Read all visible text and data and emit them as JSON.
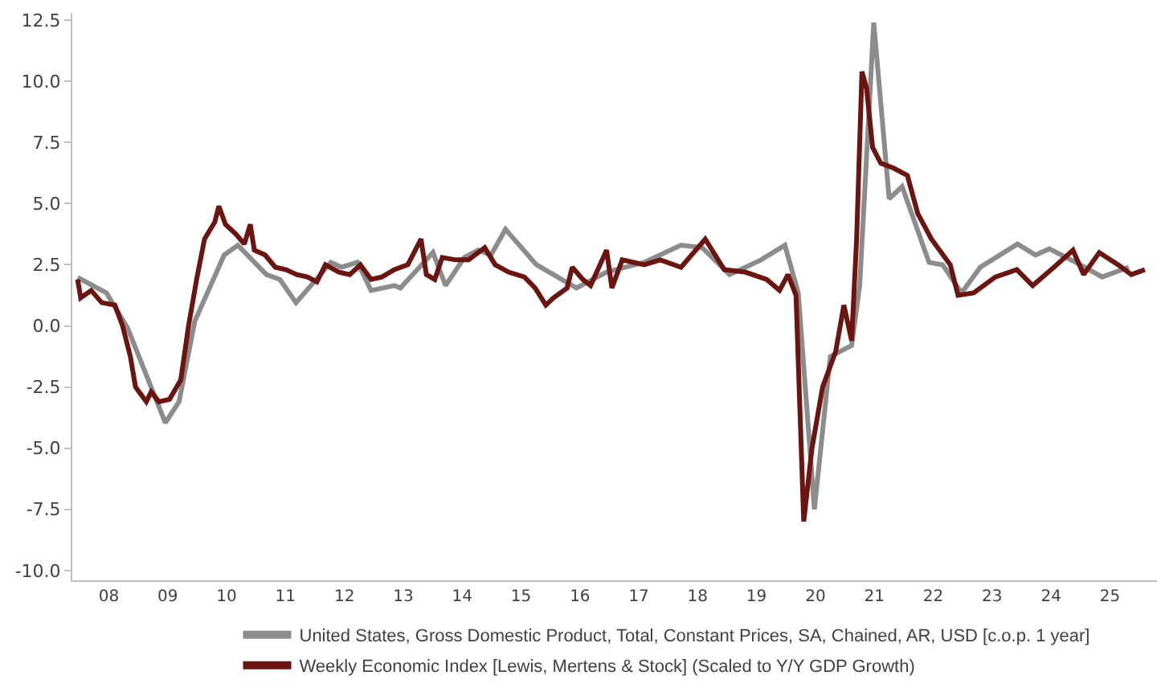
{
  "chart_data": {
    "type": "line",
    "legend": "bottom",
    "marker": "none",
    "line_style": "solid",
    "xlim": [
      "2007-11-17",
      "2026-04-19"
    ],
    "ylim": [
      -10.4,
      12.8
    ],
    "xticks": [
      {
        "value": "2008-07-01",
        "label": "08"
      },
      {
        "value": "2009-07-01",
        "label": "09"
      },
      {
        "value": "2010-07-01",
        "label": "10"
      },
      {
        "value": "2011-07-01",
        "label": "11"
      },
      {
        "value": "2012-07-01",
        "label": "12"
      },
      {
        "value": "2013-07-01",
        "label": "13"
      },
      {
        "value": "2014-07-01",
        "label": "14"
      },
      {
        "value": "2015-07-01",
        "label": "15"
      },
      {
        "value": "2016-07-01",
        "label": "16"
      },
      {
        "value": "2017-07-01",
        "label": "17"
      },
      {
        "value": "2018-07-01",
        "label": "18"
      },
      {
        "value": "2019-07-01",
        "label": "19"
      },
      {
        "value": "2020-07-01",
        "label": "20"
      },
      {
        "value": "2021-07-01",
        "label": "21"
      },
      {
        "value": "2022-07-01",
        "label": "22"
      },
      {
        "value": "2023-07-01",
        "label": "23"
      },
      {
        "value": "2024-07-01",
        "label": "24"
      },
      {
        "value": "2025-07-01",
        "label": "25"
      }
    ],
    "yticks": [
      {
        "value": -10,
        "label": "-10.0"
      },
      {
        "value": -7.5,
        "label": "-7.5"
      },
      {
        "value": -5,
        "label": "-5.0"
      },
      {
        "value": -2.5,
        "label": "-2.5"
      },
      {
        "value": 0,
        "label": "0.0"
      },
      {
        "value": 2.5,
        "label": "2.5"
      },
      {
        "value": 5,
        "label": "5.0"
      },
      {
        "value": 7.5,
        "label": "7.5"
      },
      {
        "value": 10,
        "label": "10.0"
      },
      {
        "value": 12.5,
        "label": "12.5"
      }
    ],
    "series": [
      {
        "name": "United States, Gross Domestic Product, Total, Constant Prices, SA, Chained, AR, USD [c.o.p. 1 year]",
        "color": "#8c8c8c",
        "x": [
          "2007-12-20",
          "2008-06-16",
          "2008-10-26",
          "2009-06-16",
          "2009-09-09",
          "2009-12-16",
          "2010-06-16",
          "2010-09-09",
          "2011-03-05",
          "2011-05-28",
          "2011-09-05",
          "2012-04-08",
          "2012-06-13",
          "2012-09-20",
          "2012-12-13",
          "2013-05-07",
          "2013-06-13",
          "2014-01-01",
          "2014-03-20",
          "2014-07-15",
          "2014-10-08",
          "2014-12-27",
          "2015-03-27",
          "2015-10-05",
          "2016-06-09",
          "2016-12-13",
          "2017-08-03",
          "2018-03-20",
          "2018-07-29",
          "2019-01-15",
          "2019-07-29",
          "2019-12-24",
          "2020-03-16",
          "2020-06-24",
          "2020-10-01",
          "2021-02-10",
          "2021-04-01",
          "2021-06-27",
          "2021-10-01",
          "2021-12-20",
          "2022-06-05",
          "2022-08-28",
          "2022-12-24",
          "2023-04-19",
          "2023-12-06",
          "2024-03-27",
          "2024-06-20",
          "2024-12-02",
          "2025-05-14",
          "2025-10-26"
        ],
        "values": [
          1.98,
          1.35,
          -0.1,
          -3.96,
          -3.1,
          0.2,
          2.9,
          3.3,
          2.1,
          1.9,
          0.95,
          2.6,
          2.4,
          2.6,
          1.45,
          1.65,
          1.55,
          3.0,
          1.65,
          2.8,
          3.1,
          2.9,
          3.95,
          2.5,
          1.55,
          2.2,
          2.6,
          3.3,
          3.2,
          2.1,
          2.7,
          3.3,
          1.35,
          -7.5,
          -1.25,
          -0.8,
          1.65,
          12.4,
          5.2,
          5.7,
          2.6,
          2.5,
          1.35,
          2.4,
          3.35,
          2.9,
          3.15,
          2.6,
          2.0,
          2.4
        ]
      },
      {
        "name": "Weekly Economic Index [Lewis, Mertens & Stock] (Scaled to Y/Y GDP Growth)",
        "color": "#6b1410",
        "x": [
          "2007-12-20",
          "2008-01-08",
          "2008-03-13",
          "2008-05-18",
          "2008-08-07",
          "2008-09-24",
          "2008-11-11",
          "2008-12-13",
          "2009-02-18",
          "2009-03-20",
          "2009-05-07",
          "2009-07-12",
          "2009-09-20",
          "2009-11-07",
          "2009-12-27",
          "2010-02-14",
          "2010-04-19",
          "2010-05-14",
          "2010-06-24",
          "2010-08-28",
          "2010-10-19",
          "2010-11-25",
          "2010-12-20",
          "2011-02-25",
          "2011-04-29",
          "2011-07-05",
          "2011-09-09",
          "2011-11-14",
          "2012-01-12",
          "2012-03-05",
          "2012-05-28",
          "2012-08-03",
          "2012-10-08",
          "2012-12-13",
          "2013-02-18",
          "2013-05-07",
          "2013-07-29",
          "2013-10-19",
          "2013-11-21",
          "2014-01-12",
          "2014-02-28",
          "2014-05-21",
          "2014-08-10",
          "2014-11-18",
          "2015-01-22",
          "2015-04-15",
          "2015-07-22",
          "2015-09-27",
          "2015-12-02",
          "2016-01-19",
          "2016-04-12",
          "2016-05-14",
          "2016-07-19",
          "2016-09-05",
          "2016-12-13",
          "2017-01-15",
          "2017-03-20",
          "2017-08-03",
          "2017-11-11",
          "2018-03-20",
          "2018-08-17",
          "2018-12-13",
          "2019-04-22",
          "2019-09-02",
          "2019-11-21",
          "2020-01-12",
          "2020-03-02",
          "2020-04-19",
          "2020-06-09",
          "2020-08-14",
          "2020-11-03",
          "2020-12-24",
          "2021-02-10",
          "2021-03-13",
          "2021-04-15",
          "2021-05-14",
          "2021-06-20",
          "2021-08-10",
          "2021-10-29",
          "2022-01-22",
          "2022-03-27",
          "2022-06-20",
          "2022-10-15",
          "2022-12-02",
          "2023-03-09",
          "2023-07-22",
          "2023-12-02",
          "2024-03-09",
          "2024-07-19",
          "2024-11-14",
          "2025-01-19",
          "2025-04-26",
          "2025-08-21",
          "2025-11-11",
          "2026-02-03"
        ],
        "values": [
          1.9,
          1.15,
          1.45,
          0.95,
          0.85,
          0,
          -1.25,
          -2.5,
          -3.1,
          -2.7,
          -3.1,
          -3.0,
          -2.2,
          0,
          1.9,
          3.55,
          4.25,
          4.9,
          4.15,
          3.75,
          3.35,
          4.15,
          3.1,
          2.9,
          2.4,
          2.3,
          2.1,
          2.0,
          1.8,
          2.5,
          2.2,
          2.1,
          2.5,
          1.9,
          2.0,
          2.3,
          2.5,
          3.55,
          2.1,
          1.9,
          2.8,
          2.7,
          2.7,
          3.2,
          2.5,
          2.2,
          2.0,
          1.55,
          0.85,
          1.15,
          1.55,
          2.4,
          1.9,
          1.65,
          3.1,
          1.55,
          2.7,
          2.5,
          2.7,
          2.4,
          3.55,
          2.3,
          2.2,
          1.9,
          1.45,
          2.1,
          1.25,
          -8.0,
          -5.0,
          -2.5,
          -1.05,
          0.85,
          -0.6,
          3.55,
          10.4,
          9.7,
          7.3,
          6.65,
          6.45,
          6.15,
          4.6,
          3.55,
          2.5,
          1.25,
          1.35,
          2.0,
          2.3,
          1.65,
          2.4,
          3.1,
          2.1,
          3.0,
          2.5,
          2.1,
          2.3
        ]
      }
    ]
  }
}
